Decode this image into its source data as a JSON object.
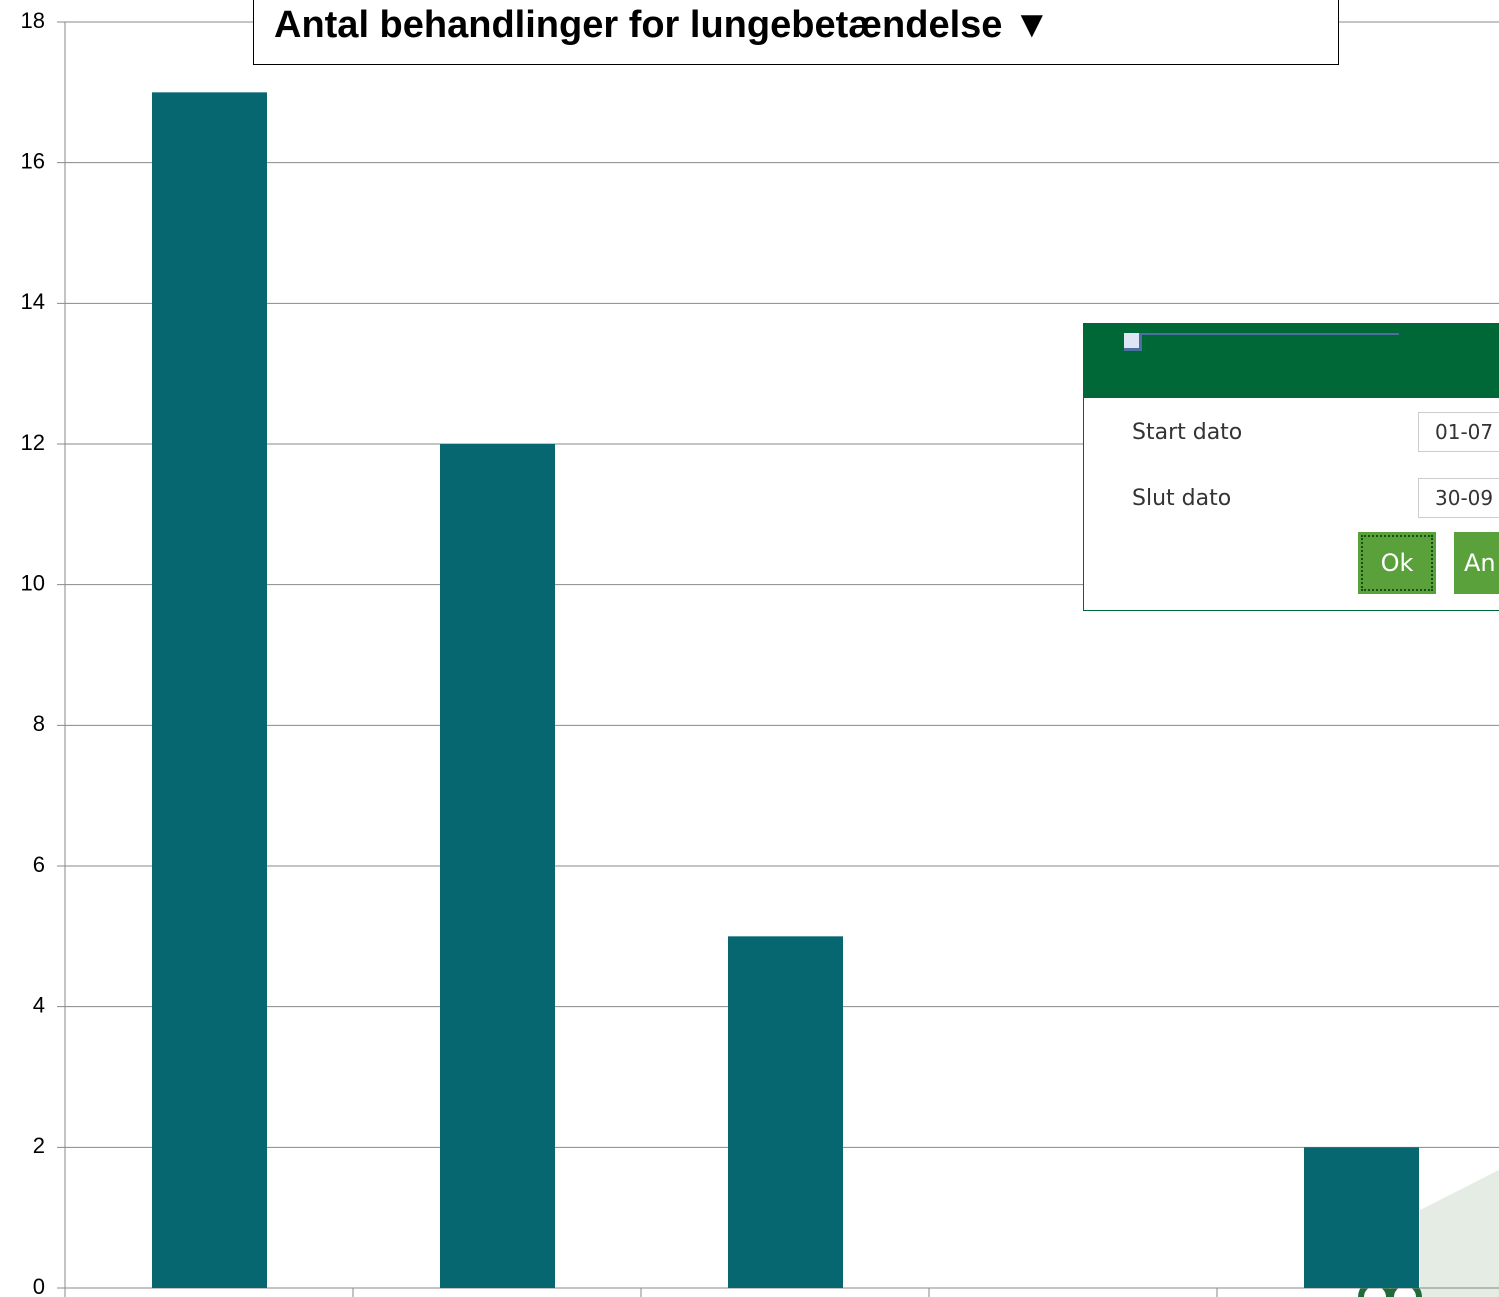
{
  "chart_data": {
    "type": "bar",
    "title": "Antal behandlinger for lungebetændelse ▼",
    "categories": [
      null,
      null,
      null,
      null,
      null
    ],
    "values": [
      17,
      12,
      5,
      0,
      2
    ],
    "color": "#076770",
    "ylim": [
      0,
      18
    ],
    "yticks": [
      0,
      2,
      4,
      6,
      8,
      10,
      12,
      14,
      16,
      18
    ],
    "grid": true
  },
  "dialog": {
    "start_label": "Start dato",
    "start_value": "01-07",
    "end_label": "Slut dato",
    "end_value": "30-09",
    "ok": "Ok",
    "cancel": "An"
  }
}
